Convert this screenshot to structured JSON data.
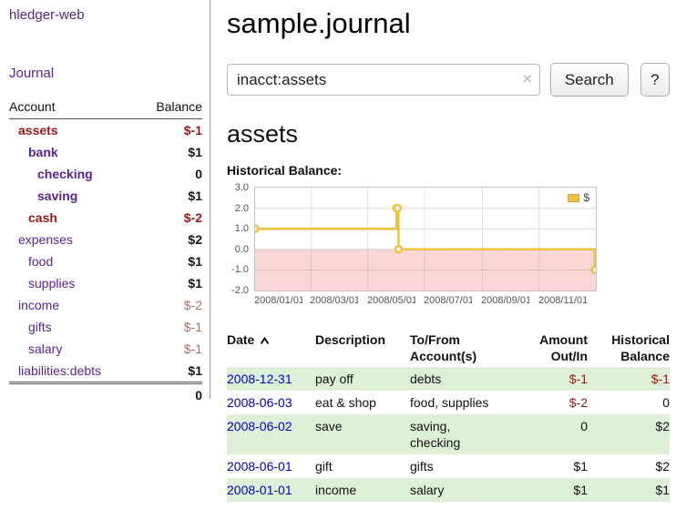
{
  "app": {
    "brand": "hledger-web",
    "nav_journal": "Journal"
  },
  "sidebar": {
    "header": {
      "account": "Account",
      "balance": "Balance"
    },
    "accounts": [
      {
        "name": "assets",
        "depth": 0,
        "balance": "$-1",
        "name_style": "negbold",
        "bal_style": "negbold"
      },
      {
        "name": "bank",
        "depth": 1,
        "balance": "$1",
        "name_style": "bold",
        "bal_style": "bold"
      },
      {
        "name": "checking",
        "depth": 2,
        "balance": "0",
        "name_style": "bold",
        "bal_style": "bold"
      },
      {
        "name": "saving",
        "depth": 2,
        "balance": "$1",
        "name_style": "bold",
        "bal_style": "bold"
      },
      {
        "name": "cash",
        "depth": 1,
        "balance": "$-2",
        "name_style": "negbold",
        "bal_style": "negbold"
      },
      {
        "name": "expenses",
        "depth": 0,
        "balance": "$2",
        "name_style": "plain",
        "bal_style": "bold"
      },
      {
        "name": "food",
        "depth": 1,
        "balance": "$1",
        "name_style": "plain",
        "bal_style": "bold"
      },
      {
        "name": "supplies",
        "depth": 1,
        "balance": "$1",
        "name_style": "plain",
        "bal_style": "bold"
      },
      {
        "name": "income",
        "depth": 0,
        "balance": "$-2",
        "name_style": "plain",
        "bal_style": "negmuted"
      },
      {
        "name": "gifts",
        "depth": 1,
        "balance": "$-1",
        "name_style": "plain",
        "bal_style": "negmuted"
      },
      {
        "name": "salary",
        "depth": 1,
        "balance": "$-1",
        "name_style": "plain",
        "bal_style": "negmuted"
      },
      {
        "name": "liabilities:debts",
        "depth": 0,
        "balance": "$1",
        "name_style": "plain",
        "bal_style": "bold"
      }
    ],
    "total": "0"
  },
  "header": {
    "title": "sample.journal"
  },
  "search": {
    "value": "inacct:assets",
    "clear_icon": "×",
    "button": "Search",
    "help_button": "?"
  },
  "account_page": {
    "title": "assets",
    "chart_label": "Historical Balance:"
  },
  "chart_data": {
    "type": "line",
    "step": true,
    "title": "Historical Balance:",
    "xlabel": "",
    "ylabel": "",
    "grid": true,
    "legend_position": "top-right",
    "series": [
      {
        "name": "$",
        "color": "#edc240",
        "points": [
          [
            "2008/01/01",
            1
          ],
          [
            "2008/06/01",
            2
          ],
          [
            "2008/06/02",
            2
          ],
          [
            "2008/06/03",
            0
          ],
          [
            "2008/12/31",
            -1
          ]
        ]
      }
    ],
    "x_range": [
      "2008/01/01",
      "2009/01/01"
    ],
    "ylim": [
      -2,
      3
    ],
    "x_ticks": [
      "2008/01/01",
      "2008/03/01",
      "2008/05/01",
      "2008/07/01",
      "2008/09/01",
      "2008/11/01"
    ],
    "y_ticks": [
      "3.0",
      "2.0",
      "1.0",
      "0.0",
      "-1.0",
      "-2.0"
    ],
    "negative_region_color": "#f9d7d7"
  },
  "register": {
    "columns": {
      "date": "Date",
      "description": "Description",
      "tofrom": [
        "To/From",
        "Account(s)"
      ],
      "amount": [
        "Amount",
        "Out/In"
      ],
      "balance": [
        "Historical",
        "Balance"
      ]
    },
    "rows": [
      {
        "date": "2008-12-31",
        "description": "pay off",
        "accounts": "debts",
        "amount": "$-1",
        "amount_neg": true,
        "balance": "$-1",
        "balance_neg": true,
        "shaded": true
      },
      {
        "date": "2008-06-03",
        "description": "eat & shop",
        "accounts": "food, supplies",
        "amount": "$-2",
        "amount_neg": true,
        "balance": "0",
        "balance_neg": false,
        "shaded": false
      },
      {
        "date": "2008-06-02",
        "description": "save",
        "accounts": "saving, checking",
        "amount": "0",
        "amount_neg": false,
        "balance": "$2",
        "balance_neg": false,
        "shaded": true
      },
      {
        "date": "2008-06-01",
        "description": "gift",
        "accounts": "gifts",
        "amount": "$1",
        "amount_neg": false,
        "balance": "$2",
        "balance_neg": false,
        "shaded": false
      },
      {
        "date": "2008-01-01",
        "description": "income",
        "accounts": "salary",
        "amount": "$1",
        "amount_neg": false,
        "balance": "$1",
        "balance_neg": false,
        "shaded": true
      }
    ]
  },
  "icons": {
    "sort_ascending": "chevron-up",
    "clear_search": "×"
  },
  "colors": {
    "accent_purple": "#5c1f99",
    "link_blue": "#0000cc",
    "negative": "#9e1616",
    "negative_muted": "#b06e6e",
    "row_green": "#dff0d8",
    "chart_line": "#edc240",
    "chart_negative_fill": "#f9d7d7"
  }
}
